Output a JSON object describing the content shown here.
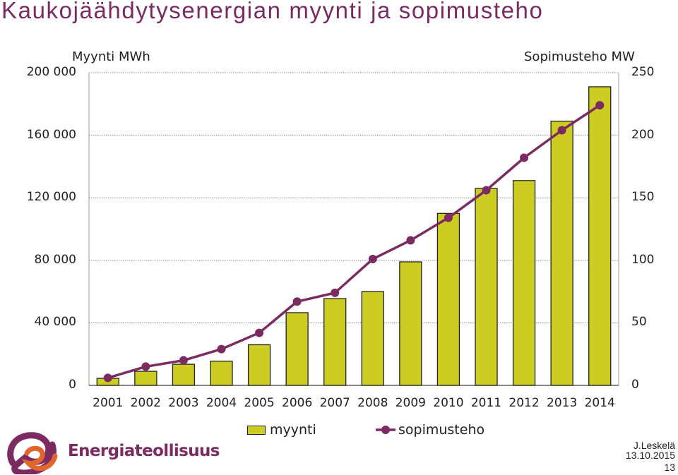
{
  "title": "Kaukojäähdytysenergian myynti ja sopimusteho",
  "chart_data": {
    "type": "bar+line",
    "categories": [
      "2001",
      "2002",
      "2003",
      "2004",
      "2005",
      "2006",
      "2007",
      "2008",
      "2009",
      "2010",
      "2011",
      "2012",
      "2013",
      "2014"
    ],
    "left_axis": {
      "label": "Myynti MWh",
      "ylim": [
        0,
        200000
      ],
      "ticks": [
        "0",
        "40 000",
        "80 000",
        "120 000",
        "160 000",
        "200 000"
      ]
    },
    "right_axis": {
      "label": "Sopimusteho MW",
      "ylim": [
        0,
        250
      ],
      "ticks": [
        "0",
        "50",
        "100",
        "150",
        "200",
        "250"
      ]
    },
    "series": [
      {
        "name": "myynti",
        "type": "bar",
        "axis": "left",
        "color": "#cccc22",
        "values": [
          4500,
          9000,
          13500,
          15500,
          26000,
          46500,
          55500,
          60000,
          79000,
          110000,
          126000,
          131000,
          169000,
          191000
        ]
      },
      {
        "name": "sopimusteho",
        "type": "line",
        "axis": "right",
        "color": "#7b2a62",
        "values": [
          6,
          15,
          20,
          29,
          42,
          67,
          74,
          101,
          116,
          134,
          156,
          182,
          204,
          224
        ]
      }
    ],
    "grid": "horizontal-dotted"
  },
  "brand": {
    "name": "Energiateollisuus"
  },
  "footer": {
    "author": "J.Leskelä",
    "date": "13.10.2015",
    "page": "13"
  }
}
